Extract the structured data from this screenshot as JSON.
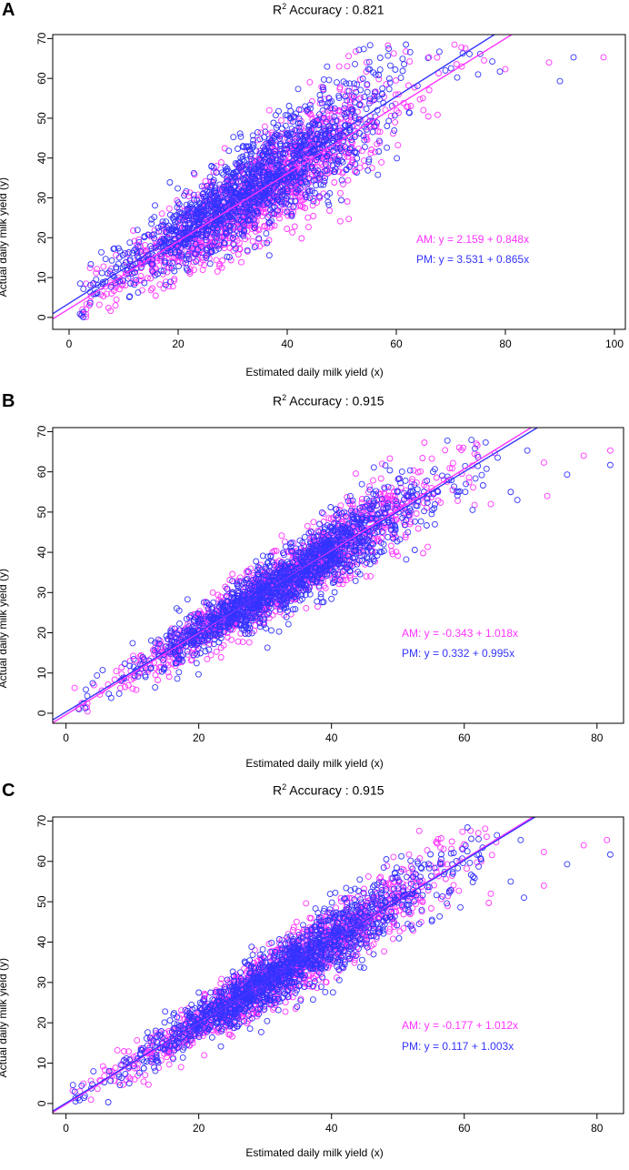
{
  "chart_data": [
    {
      "panel": "A",
      "type": "scatter",
      "title_prefix": "R",
      "title_sup": "2",
      "title_rest": " Accuracy :  0.821",
      "xlabel": "Estimated daily milk yield (x)",
      "ylabel": "Actual daily milk yield (y)",
      "xlim": [
        -3,
        102
      ],
      "ylim": [
        -3,
        71
      ],
      "xticks": [
        0,
        20,
        40,
        60,
        80,
        100
      ],
      "yticks": [
        0,
        10,
        20,
        30,
        40,
        50,
        60,
        70
      ],
      "series": [
        {
          "name": "AM",
          "color": "#ff33ff",
          "equation": "AM: y = 2.159 + 0.848x",
          "intercept": 2.159,
          "slope": 0.848
        },
        {
          "name": "PM",
          "color": "#3333ff",
          "equation": "PM: y = 3.531 + 0.865x",
          "intercept": 3.531,
          "slope": 0.865
        }
      ],
      "scatter_model": {
        "x_center": 34,
        "x_sd": 12,
        "x_min": 2,
        "x_max": 80,
        "noise_sd": 5.2,
        "n_per_series": 1400,
        "seed": 11
      },
      "outliers": [
        [
          88,
          64
        ],
        [
          92.5,
          65.3
        ],
        [
          98,
          65.3
        ],
        [
          90,
          59.3
        ],
        [
          80,
          62.3
        ],
        [
          79,
          61.7
        ],
        [
          66,
          65.3
        ],
        [
          69,
          62
        ],
        [
          72,
          63
        ],
        [
          75,
          61
        ]
      ]
    },
    {
      "panel": "B",
      "type": "scatter",
      "title_prefix": "R",
      "title_sup": "2",
      "title_rest": " Accuracy :  0.915",
      "xlabel": "Estimated daily milk yield (x)",
      "ylabel": "Actual daily milk yield (y)",
      "xlim": [
        -2,
        84
      ],
      "ylim": [
        -2.5,
        71
      ],
      "xticks": [
        0,
        20,
        40,
        60,
        80
      ],
      "yticks": [
        0,
        10,
        20,
        30,
        40,
        50,
        60,
        70
      ],
      "series": [
        {
          "name": "AM",
          "color": "#ff33ff",
          "equation": "AM: y = -0.343 + 1.018x",
          "intercept": -0.343,
          "slope": 1.018
        },
        {
          "name": "PM",
          "color": "#3333ff",
          "equation": "PM: y = 0.332 + 0.995x",
          "intercept": 0.332,
          "slope": 0.995
        }
      ],
      "scatter_model": {
        "x_center": 33,
        "x_sd": 11,
        "x_min": 1,
        "x_max": 66,
        "noise_sd": 3.4,
        "n_per_series": 1400,
        "seed": 23
      },
      "outliers": [
        [
          82,
          65.3
        ],
        [
          82,
          61.7
        ],
        [
          78,
          64
        ],
        [
          75.5,
          59.3
        ],
        [
          72,
          62.3
        ],
        [
          69.5,
          65.3
        ],
        [
          72.5,
          54
        ],
        [
          67,
          55
        ],
        [
          64,
          52
        ],
        [
          68,
          53
        ]
      ]
    },
    {
      "panel": "C",
      "type": "scatter",
      "title_prefix": "R",
      "title_sup": "2",
      "title_rest": " Accuracy :  0.915",
      "xlabel": "Estimated daily milk yield (x)",
      "ylabel": "Actual daily milk yield (y)",
      "xlim": [
        -2,
        84
      ],
      "ylim": [
        -2.5,
        71
      ],
      "xticks": [
        0,
        20,
        40,
        60,
        80
      ],
      "yticks": [
        0,
        10,
        20,
        30,
        40,
        50,
        60,
        70
      ],
      "series": [
        {
          "name": "AM",
          "color": "#ff33ff",
          "equation": "AM: y = -0.177 + 1.012x",
          "intercept": -0.177,
          "slope": 1.012
        },
        {
          "name": "PM",
          "color": "#3333ff",
          "equation": "PM: y = 0.117 + 1.003x",
          "intercept": 0.117,
          "slope": 1.003
        }
      ],
      "scatter_model": {
        "x_center": 33,
        "x_sd": 11,
        "x_min": 1,
        "x_max": 66,
        "noise_sd": 3.4,
        "n_per_series": 1400,
        "seed": 37
      },
      "outliers": [
        [
          81.5,
          65.3
        ],
        [
          82,
          61.7
        ],
        [
          78,
          64
        ],
        [
          75.5,
          59.3
        ],
        [
          72,
          62.3
        ],
        [
          68.5,
          65.3
        ],
        [
          72,
          54
        ],
        [
          67,
          55
        ],
        [
          64,
          52
        ],
        [
          69,
          51
        ]
      ]
    }
  ]
}
